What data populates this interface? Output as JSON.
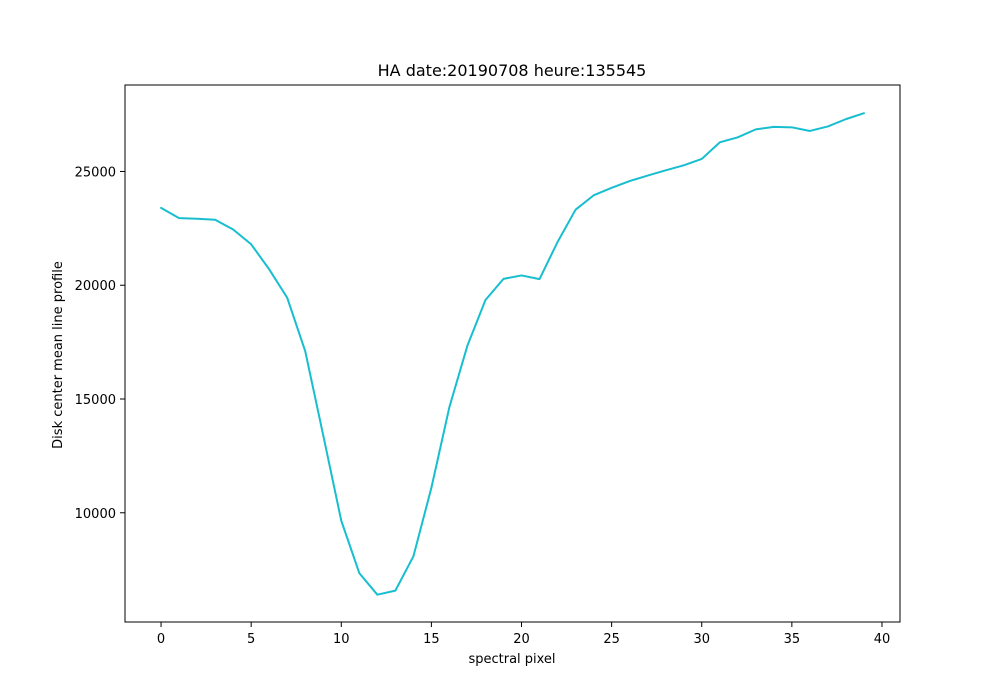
{
  "chart_data": {
    "type": "line",
    "title": "HA date:20190708 heure:135545",
    "xlabel": "spectral pixel",
    "ylabel": "Disk center mean line profile",
    "xlim": [
      -2,
      41
    ],
    "ylim": [
      5200,
      28800
    ],
    "grid": false,
    "x_ticks": [
      0,
      5,
      10,
      15,
      20,
      25,
      30,
      35,
      40
    ],
    "y_ticks": [
      10000,
      15000,
      20000,
      25000
    ],
    "line_color": "#17becf",
    "series": [
      {
        "x": [
          0,
          1,
          2,
          3,
          4,
          5,
          6,
          7,
          8,
          9,
          10,
          11,
          12,
          13,
          14,
          15,
          16,
          17,
          18,
          19,
          20,
          21,
          22,
          23,
          24,
          25,
          26,
          27,
          28,
          29,
          30,
          31,
          32,
          33,
          34,
          35,
          36,
          37,
          38,
          39
        ],
        "values": [
          23400,
          22950,
          22920,
          22880,
          22450,
          21800,
          20700,
          19450,
          17100,
          13400,
          9650,
          7350,
          6400,
          6580,
          8080,
          11100,
          14650,
          17350,
          19350,
          20280,
          20430,
          20270,
          21900,
          23320,
          23950,
          24280,
          24580,
          24820,
          25050,
          25270,
          25550,
          26280,
          26500,
          26850,
          26960,
          26940,
          26780,
          26980,
          27300,
          27560
        ]
      }
    ]
  }
}
